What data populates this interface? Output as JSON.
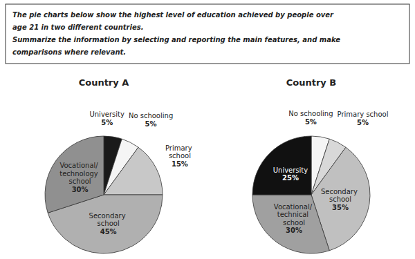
{
  "annotations": [
    "The pie charts below show the highest level of education achieved by people over",
    "age 21 in two different countries.",
    "Summarize the information by selecting and reporting the main features, and make",
    "comparisons where relevant."
  ],
  "chart_data": [
    {
      "type": "pie",
      "title": "Country A",
      "categories": [
        "University",
        "No schooling",
        "Primary\nschool",
        "Secondary\nschool",
        "Vocational/\ntechnology\nschool"
      ],
      "values": [
        5,
        5,
        15,
        45,
        30
      ],
      "value_labels": [
        "5%",
        "5%",
        "15%",
        "45%",
        "30%"
      ],
      "data_labels": true,
      "colors": [
        "#1a1a1a",
        "#f5f5f5",
        "#c8c8c8",
        "#b0b0b0",
        "#909090"
      ]
    },
    {
      "type": "pie",
      "title": "Country B",
      "categories": [
        "No schooling",
        "Primary school",
        "Secondary\nschool",
        "Vocational/\ntechnical\nschool",
        "University"
      ],
      "values": [
        5,
        5,
        35,
        30,
        25
      ],
      "value_labels": [
        "5%",
        "5%",
        "35%",
        "30%",
        "25%"
      ],
      "data_labels": true,
      "colors": [
        "#f5f5f5",
        "#d8d8d8",
        "#c0c0c0",
        "#a0a0a0",
        "#111111"
      ]
    }
  ]
}
